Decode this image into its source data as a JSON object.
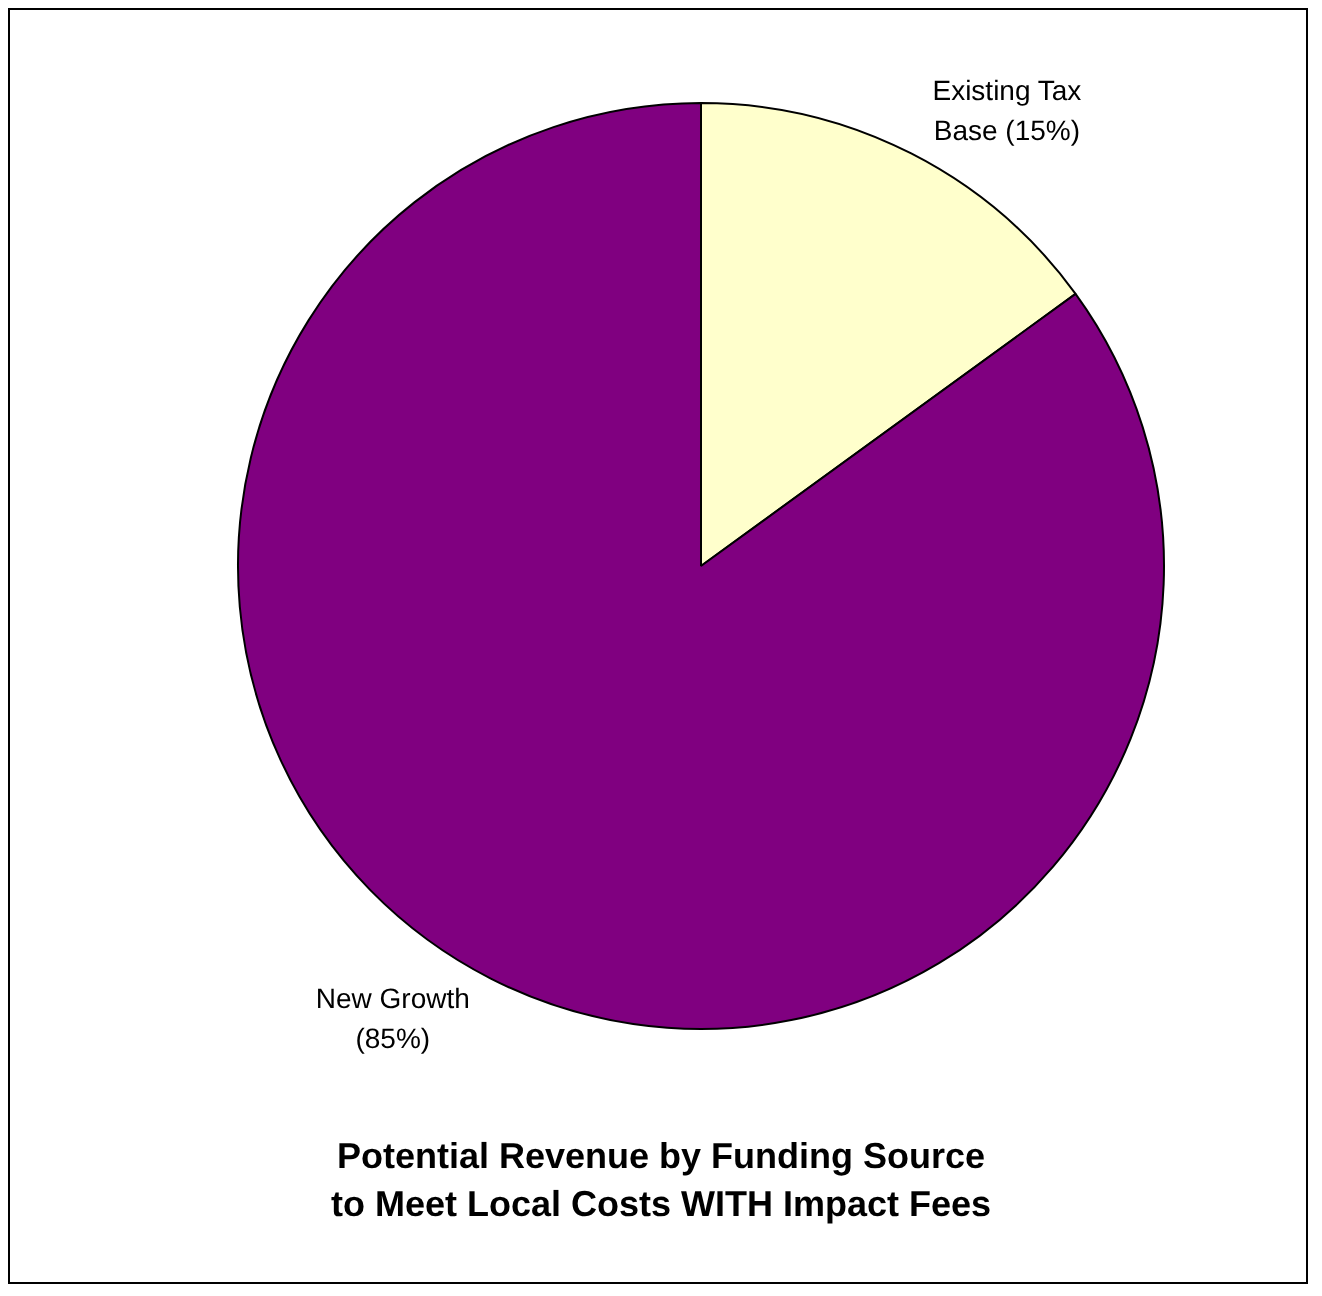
{
  "chart_data": {
    "type": "pie",
    "title": "Potential Revenue by Funding Source\nto Meet Local Costs WITH Impact Fees",
    "categories": [
      "Existing Tax Base",
      "New Growth"
    ],
    "values": [
      15,
      85
    ],
    "colors": [
      "#ffffcc",
      "#800080"
    ],
    "value_labels": [
      "(15%)",
      "(85%)"
    ],
    "legend": false
  }
}
